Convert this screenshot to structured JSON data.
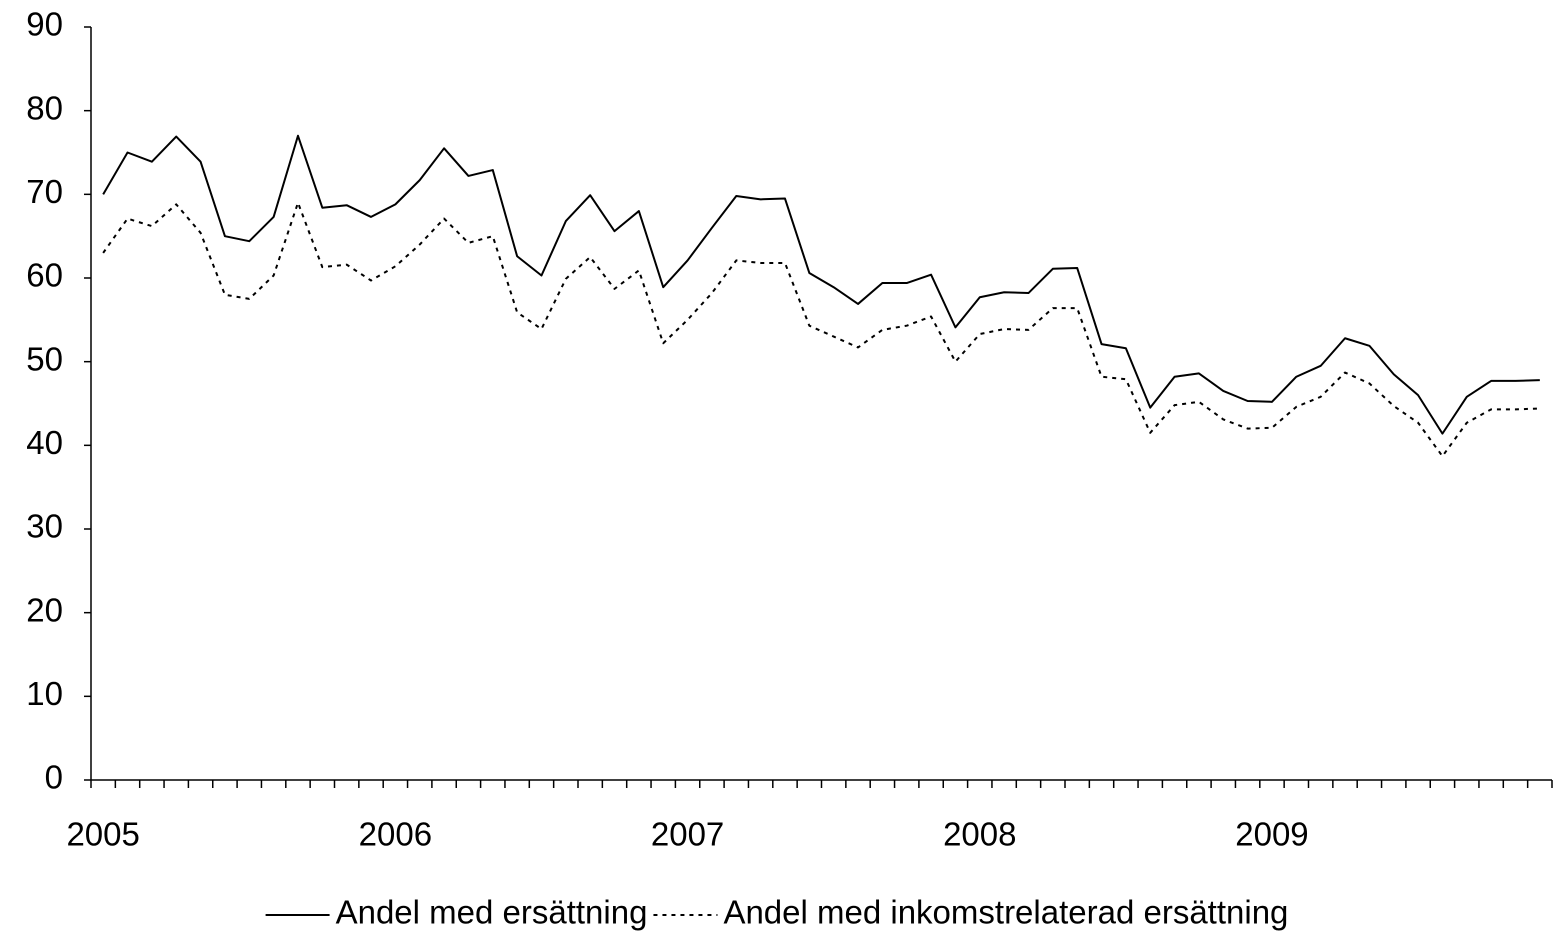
{
  "chart_data": {
    "type": "line",
    "categories": [
      "2005",
      null,
      null,
      null,
      null,
      null,
      null,
      null,
      null,
      null,
      null,
      null,
      "2006",
      null,
      null,
      null,
      null,
      null,
      null,
      null,
      null,
      null,
      null,
      null,
      "2007",
      null,
      null,
      null,
      null,
      null,
      null,
      null,
      null,
      null,
      null,
      null,
      "2008",
      null,
      null,
      null,
      null,
      null,
      null,
      null,
      null,
      null,
      null,
      null,
      "2009",
      null,
      null,
      null,
      null,
      null,
      null,
      null,
      null,
      null,
      null,
      null
    ],
    "series": [
      {
        "name": "Andel med ersättning",
        "color": "#000000",
        "dash": "solid",
        "values": [
          70.0,
          75.0,
          73.9,
          76.9,
          73.9,
          65.0,
          64.4,
          67.3,
          77.0,
          68.4,
          68.7,
          67.3,
          68.8,
          71.7,
          75.5,
          72.2,
          72.9,
          62.6,
          60.3,
          66.8,
          69.9,
          65.6,
          68.0,
          58.9,
          62.1,
          66.0,
          69.8,
          69.4,
          69.5,
          60.6,
          58.9,
          56.9,
          59.4,
          59.4,
          60.4,
          54.1,
          57.7,
          58.3,
          58.2,
          61.1,
          61.2,
          52.1,
          51.6,
          44.5,
          48.2,
          48.6,
          46.5,
          45.3,
          45.2,
          48.2,
          49.5,
          52.8,
          51.9,
          48.5,
          46.0,
          41.4,
          45.8,
          47.7,
          47.7,
          47.8
        ]
      },
      {
        "name": "Andel med inkomstrelaterad ersättning",
        "color": "#000000",
        "dash": "dotted",
        "values": [
          63.0,
          67.1,
          66.2,
          68.8,
          65.4,
          58.0,
          57.5,
          60.3,
          69.0,
          61.3,
          61.6,
          59.7,
          61.4,
          64.0,
          67.1,
          64.2,
          65.0,
          55.9,
          53.9,
          59.9,
          62.5,
          58.7,
          60.9,
          52.2,
          55.0,
          58.2,
          62.1,
          61.8,
          61.8,
          54.3,
          53.0,
          51.7,
          53.8,
          54.3,
          55.4,
          50.0,
          53.3,
          53.9,
          53.8,
          56.4,
          56.4,
          48.2,
          47.9,
          41.5,
          44.8,
          45.2,
          43.1,
          42.0,
          42.1,
          44.6,
          45.8,
          48.7,
          47.4,
          44.7,
          42.7,
          38.7,
          42.7,
          44.3,
          44.3,
          44.4
        ]
      }
    ],
    "ylim": [
      0,
      90
    ],
    "yticks": [
      0,
      10,
      20,
      30,
      40,
      50,
      60,
      70,
      80,
      90
    ],
    "grid": false,
    "legend": "bottom"
  }
}
